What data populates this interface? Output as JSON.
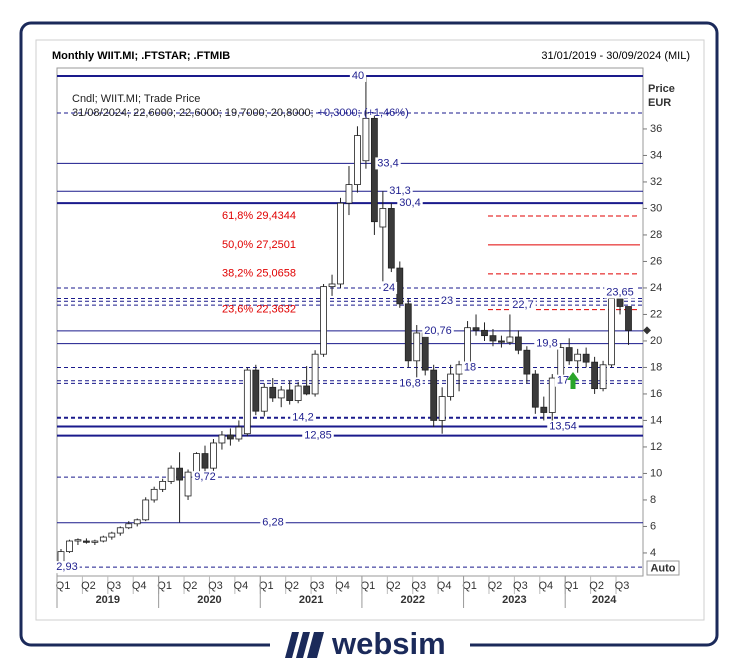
{
  "header": {
    "title": "Monthly WIIT.MI; .FTSTAR; .FTMIB",
    "range": "31/01/2019 - 30/09/2024 (MIL)"
  },
  "footer": {
    "brand": "websim"
  },
  "chart_data": {
    "type": "candlestick",
    "legend": "Cndl; WIIT.MI; Trade Price",
    "info": "31/08/2024; 22,6000; 22,6000; 19,7000; 20,8000;",
    "info_change": "+0,3000; (+1,46%)",
    "y_label": [
      "Price",
      "EUR"
    ],
    "scale_mode": "Auto",
    "up_color": "#ffffff",
    "down_color": "#3a3a3a",
    "level_color": "#1a1a8c",
    "fib_color": "#e00000",
    "ylim": [
      2.26,
      40.6
    ],
    "yticks": [
      4,
      6,
      8,
      10,
      12,
      14,
      16,
      18,
      20,
      22,
      24,
      26,
      28,
      30,
      32,
      34,
      36
    ],
    "quarters": [
      "Q1",
      "Q2",
      "Q3",
      "Q4",
      "Q1",
      "Q2",
      "Q3",
      "Q4",
      "Q1",
      "Q2",
      "Q3",
      "Q4",
      "Q1",
      "Q2",
      "Q3",
      "Q4",
      "Q1",
      "Q2",
      "Q3",
      "Q4",
      "Q1",
      "Q2",
      "Q3"
    ],
    "years": [
      "2019",
      "2020",
      "2021",
      "2022",
      "2023",
      "2024"
    ],
    "open": [
      3.3,
      4.1,
      4.9,
      4.9,
      4.8,
      4.9,
      5.2,
      5.5,
      5.9,
      6.2,
      6.5,
      8.0,
      8.8,
      9.4,
      10.4,
      8.3,
      10.1,
      11.5,
      10.4,
      12.3,
      12.9,
      12.6,
      13.0,
      17.8,
      14.7,
      16.5,
      15.7,
      16.3,
      15.5,
      16.6,
      16.0,
      19.0,
      24.1,
      24.3,
      30.4,
      31.8,
      33.6,
      36.8,
      28.6,
      30.0,
      25.5,
      22.8,
      18.5,
      20.6,
      17.8,
      14.0,
      15.8,
      17.5,
      18.2,
      21.0,
      20.8,
      20.4,
      20.0,
      19.9,
      20.3,
      19.3,
      17.5,
      15.0,
      14.6,
      17.2,
      19.5,
      18.5,
      19.0,
      18.4,
      16.4,
      18.2,
      23.2,
      22.6
    ],
    "high": [
      4.3,
      5.0,
      5.1,
      5.1,
      5.0,
      5.3,
      5.6,
      6.0,
      6.4,
      6.6,
      8.2,
      9.0,
      9.6,
      10.6,
      11.6,
      10.3,
      11.6,
      12.1,
      12.6,
      13.2,
      13.4,
      14.0,
      18.0,
      18.2,
      16.8,
      17.2,
      16.6,
      17.0,
      16.9,
      18.1,
      19.3,
      24.3,
      25.0,
      30.8,
      33.2,
      36.2,
      40.0,
      37.0,
      31.3,
      30.4,
      26.0,
      23.2,
      21.2,
      21.0,
      18.2,
      16.5,
      18.2,
      18.5,
      21.5,
      22.0,
      21.4,
      20.9,
      20.4,
      22.0,
      20.8,
      19.6,
      17.8,
      15.8,
      17.5,
      19.8,
      20.2,
      19.4,
      19.5,
      18.8,
      18.5,
      23.65,
      23.65,
      22.6
    ],
    "low": [
      2.93,
      4.0,
      4.6,
      4.7,
      4.6,
      4.8,
      5.0,
      5.3,
      5.8,
      6.0,
      6.4,
      7.8,
      8.6,
      9.2,
      6.3,
      8.0,
      9.9,
      10.0,
      10.2,
      11.8,
      12.1,
      12.4,
      12.8,
      14.4,
      14.3,
      15.4,
      15.0,
      15.2,
      15.3,
      15.9,
      15.8,
      18.8,
      23.4,
      24.0,
      29.5,
      31.2,
      33.0,
      28.0,
      24.5,
      25.2,
      22.5,
      18.0,
      17.0,
      17.4,
      13.5,
      13.0,
      15.5,
      16.2,
      17.9,
      20.4,
      20.0,
      19.6,
      19.5,
      19.7,
      19.0,
      16.8,
      14.5,
      14.0,
      13.54,
      17.0,
      18.2,
      17.6,
      18.0,
      16.0,
      16.2,
      18.0,
      22.0,
      19.7
    ],
    "close": [
      4.1,
      4.9,
      5.0,
      4.8,
      4.9,
      5.2,
      5.5,
      5.9,
      6.2,
      6.5,
      8.0,
      8.8,
      9.4,
      10.4,
      9.5,
      10.1,
      11.5,
      10.4,
      12.3,
      12.9,
      12.6,
      13.5,
      17.8,
      14.7,
      16.5,
      15.7,
      16.3,
      15.5,
      16.6,
      16.0,
      19.0,
      24.1,
      24.3,
      30.4,
      31.8,
      35.5,
      36.8,
      29.0,
      30.0,
      25.5,
      22.8,
      18.5,
      20.6,
      17.8,
      14.0,
      15.8,
      17.5,
      18.2,
      21.0,
      20.8,
      20.4,
      20.0,
      19.9,
      20.3,
      19.3,
      17.5,
      15.0,
      14.6,
      17.2,
      19.5,
      18.5,
      19.0,
      18.4,
      16.4,
      18.2,
      23.2,
      22.6,
      20.8
    ],
    "levels": [
      {
        "value": 40,
        "label": "40",
        "style": "thick"
      },
      {
        "value": 37.2,
        "style": "dashed"
      },
      {
        "value": 33.4,
        "label": "33,4",
        "style": "solid"
      },
      {
        "value": 31.3,
        "label": "31,3",
        "style": "solid"
      },
      {
        "value": 30.4,
        "label": "30,4",
        "style": "thick"
      },
      {
        "value": 24,
        "label": "24",
        "style": "dashed"
      },
      {
        "value": 23.2,
        "style": "dashed"
      },
      {
        "value": 23,
        "label": "23",
        "style": "dashed"
      },
      {
        "value": 22.7,
        "label": "22,7",
        "style": "dashed"
      },
      {
        "value": 20.76,
        "label": "20,76",
        "style": "solid"
      },
      {
        "value": 19.8,
        "label": "19,8",
        "style": "solid"
      },
      {
        "value": 18,
        "label": "18",
        "style": "dashed"
      },
      {
        "value": 17,
        "label": "17",
        "style": "dashed"
      },
      {
        "value": 16.8,
        "label": "16,8",
        "style": "dashed"
      },
      {
        "value": 14.2,
        "label": "14,2",
        "style": "thick-dashed"
      },
      {
        "value": 13.54,
        "label": "13,54",
        "style": "thick"
      },
      {
        "value": 12.85,
        "label": "12,85",
        "style": "thick"
      },
      {
        "value": 9.72,
        "label": "9,72",
        "style": "dashed"
      },
      {
        "value": 6.28,
        "label": "6,28",
        "style": "solid"
      },
      {
        "value": 2.93,
        "label": "2,93",
        "style": "dashed"
      },
      {
        "value": 23.65,
        "label": "23,65",
        "style": "label-only"
      }
    ],
    "fib": [
      {
        "value": 29.4344,
        "label": "61,8% 29,4344",
        "style": "dashed"
      },
      {
        "value": 27.2501,
        "label": "50,0% 27,2501",
        "style": "solid"
      },
      {
        "value": 25.0658,
        "label": "38,2% 25,0658",
        "style": "dashed"
      },
      {
        "value": 22.3632,
        "label": "23,6% 22,3632",
        "style": "dashed"
      }
    ]
  }
}
